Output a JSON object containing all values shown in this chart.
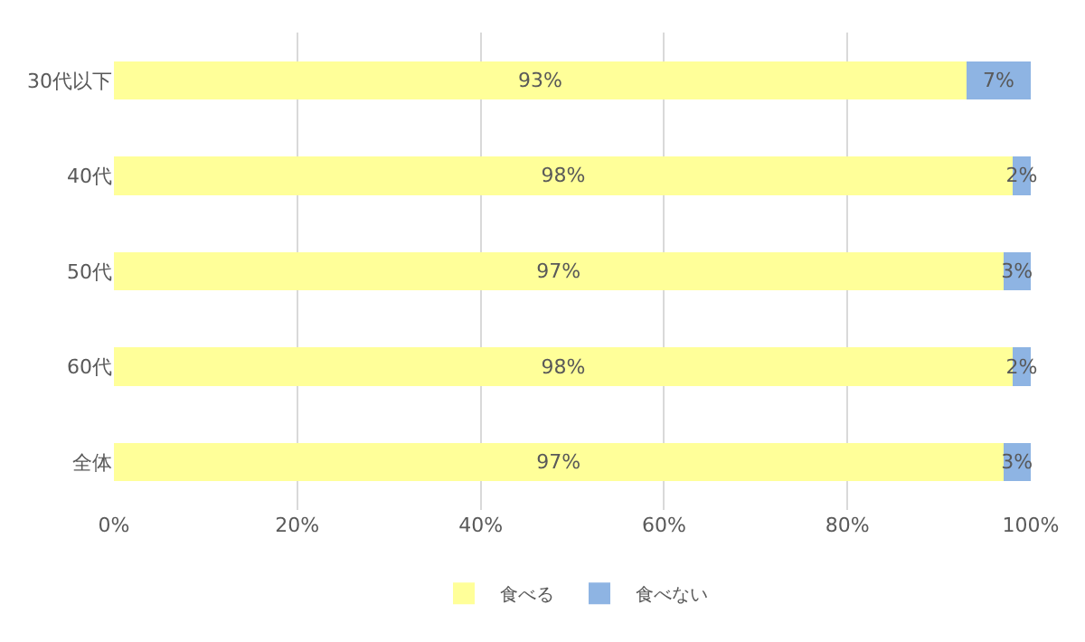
{
  "chart_data": {
    "type": "bar",
    "orientation": "horizontal",
    "stacked": true,
    "categories": [
      "30代以下",
      "40代",
      "50代",
      "60代",
      "全体"
    ],
    "series": [
      {
        "name": "食べる",
        "color": "#ffff99",
        "values": [
          93,
          98,
          97,
          98,
          97
        ],
        "value_labels": [
          "93%",
          "98%",
          "97%",
          "98%",
          "97%"
        ]
      },
      {
        "name": "食べない",
        "color": "#8eb4e3",
        "values": [
          7,
          2,
          3,
          2,
          3
        ],
        "value_labels": [
          "7%",
          "2%",
          "3%",
          "2%",
          "3%"
        ]
      }
    ],
    "xlim": [
      0,
      100
    ],
    "xticks": [
      {
        "value": 0,
        "label": "0%"
      },
      {
        "value": 20,
        "label": "20%"
      },
      {
        "value": 40,
        "label": "40%"
      },
      {
        "value": 60,
        "label": "60%"
      },
      {
        "value": 80,
        "label": "80%"
      },
      {
        "value": 100,
        "label": "100%"
      }
    ],
    "grid": "x",
    "legend": "bottom"
  }
}
